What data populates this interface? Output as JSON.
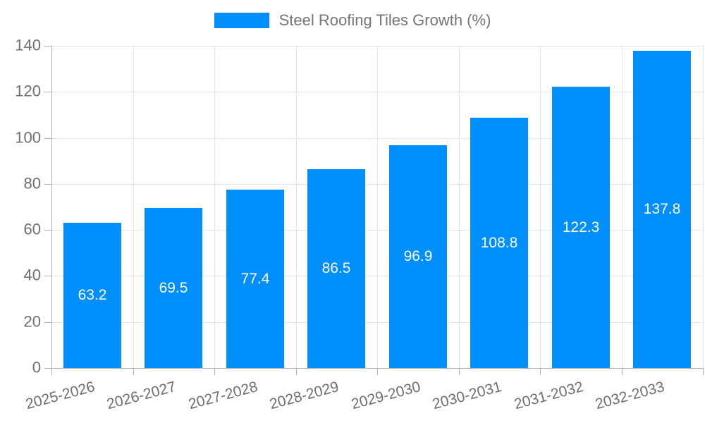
{
  "legend": {
    "label": "Steel Roofing Tiles Growth (%)"
  },
  "chart_data": {
    "type": "bar",
    "title": "Steel Roofing Tiles Growth (%)",
    "categories": [
      "2025-2026",
      "2026-2027",
      "2027-2028",
      "2028-2029",
      "2029-2030",
      "2030-2031",
      "2031-2032",
      "2032-2033"
    ],
    "series": [
      {
        "name": "Steel Roofing Tiles Growth (%)",
        "values": [
          63.2,
          69.5,
          77.4,
          86.5,
          96.9,
          108.8,
          122.3,
          137.8
        ]
      }
    ],
    "value_labels": [
      "63.2",
      "69.5",
      "77.4",
      "86.5",
      "96.9",
      "108.8",
      "122.3",
      "137.8"
    ],
    "xlabel": "",
    "ylabel": "",
    "ylim": [
      0,
      140
    ],
    "yticks": [
      0,
      20,
      40,
      60,
      80,
      100,
      120,
      140
    ],
    "grid": true,
    "grid_vertical": true,
    "legend_position": "top-center",
    "x_label_rotation_deg": -15,
    "colors": {
      "bar": "#008FFB",
      "grid": "#e4e4e4",
      "axis": "#b0b0b0",
      "axis_label": "#6e6e6e",
      "value_label": "#ffffff",
      "legend_text": "#757575"
    }
  }
}
